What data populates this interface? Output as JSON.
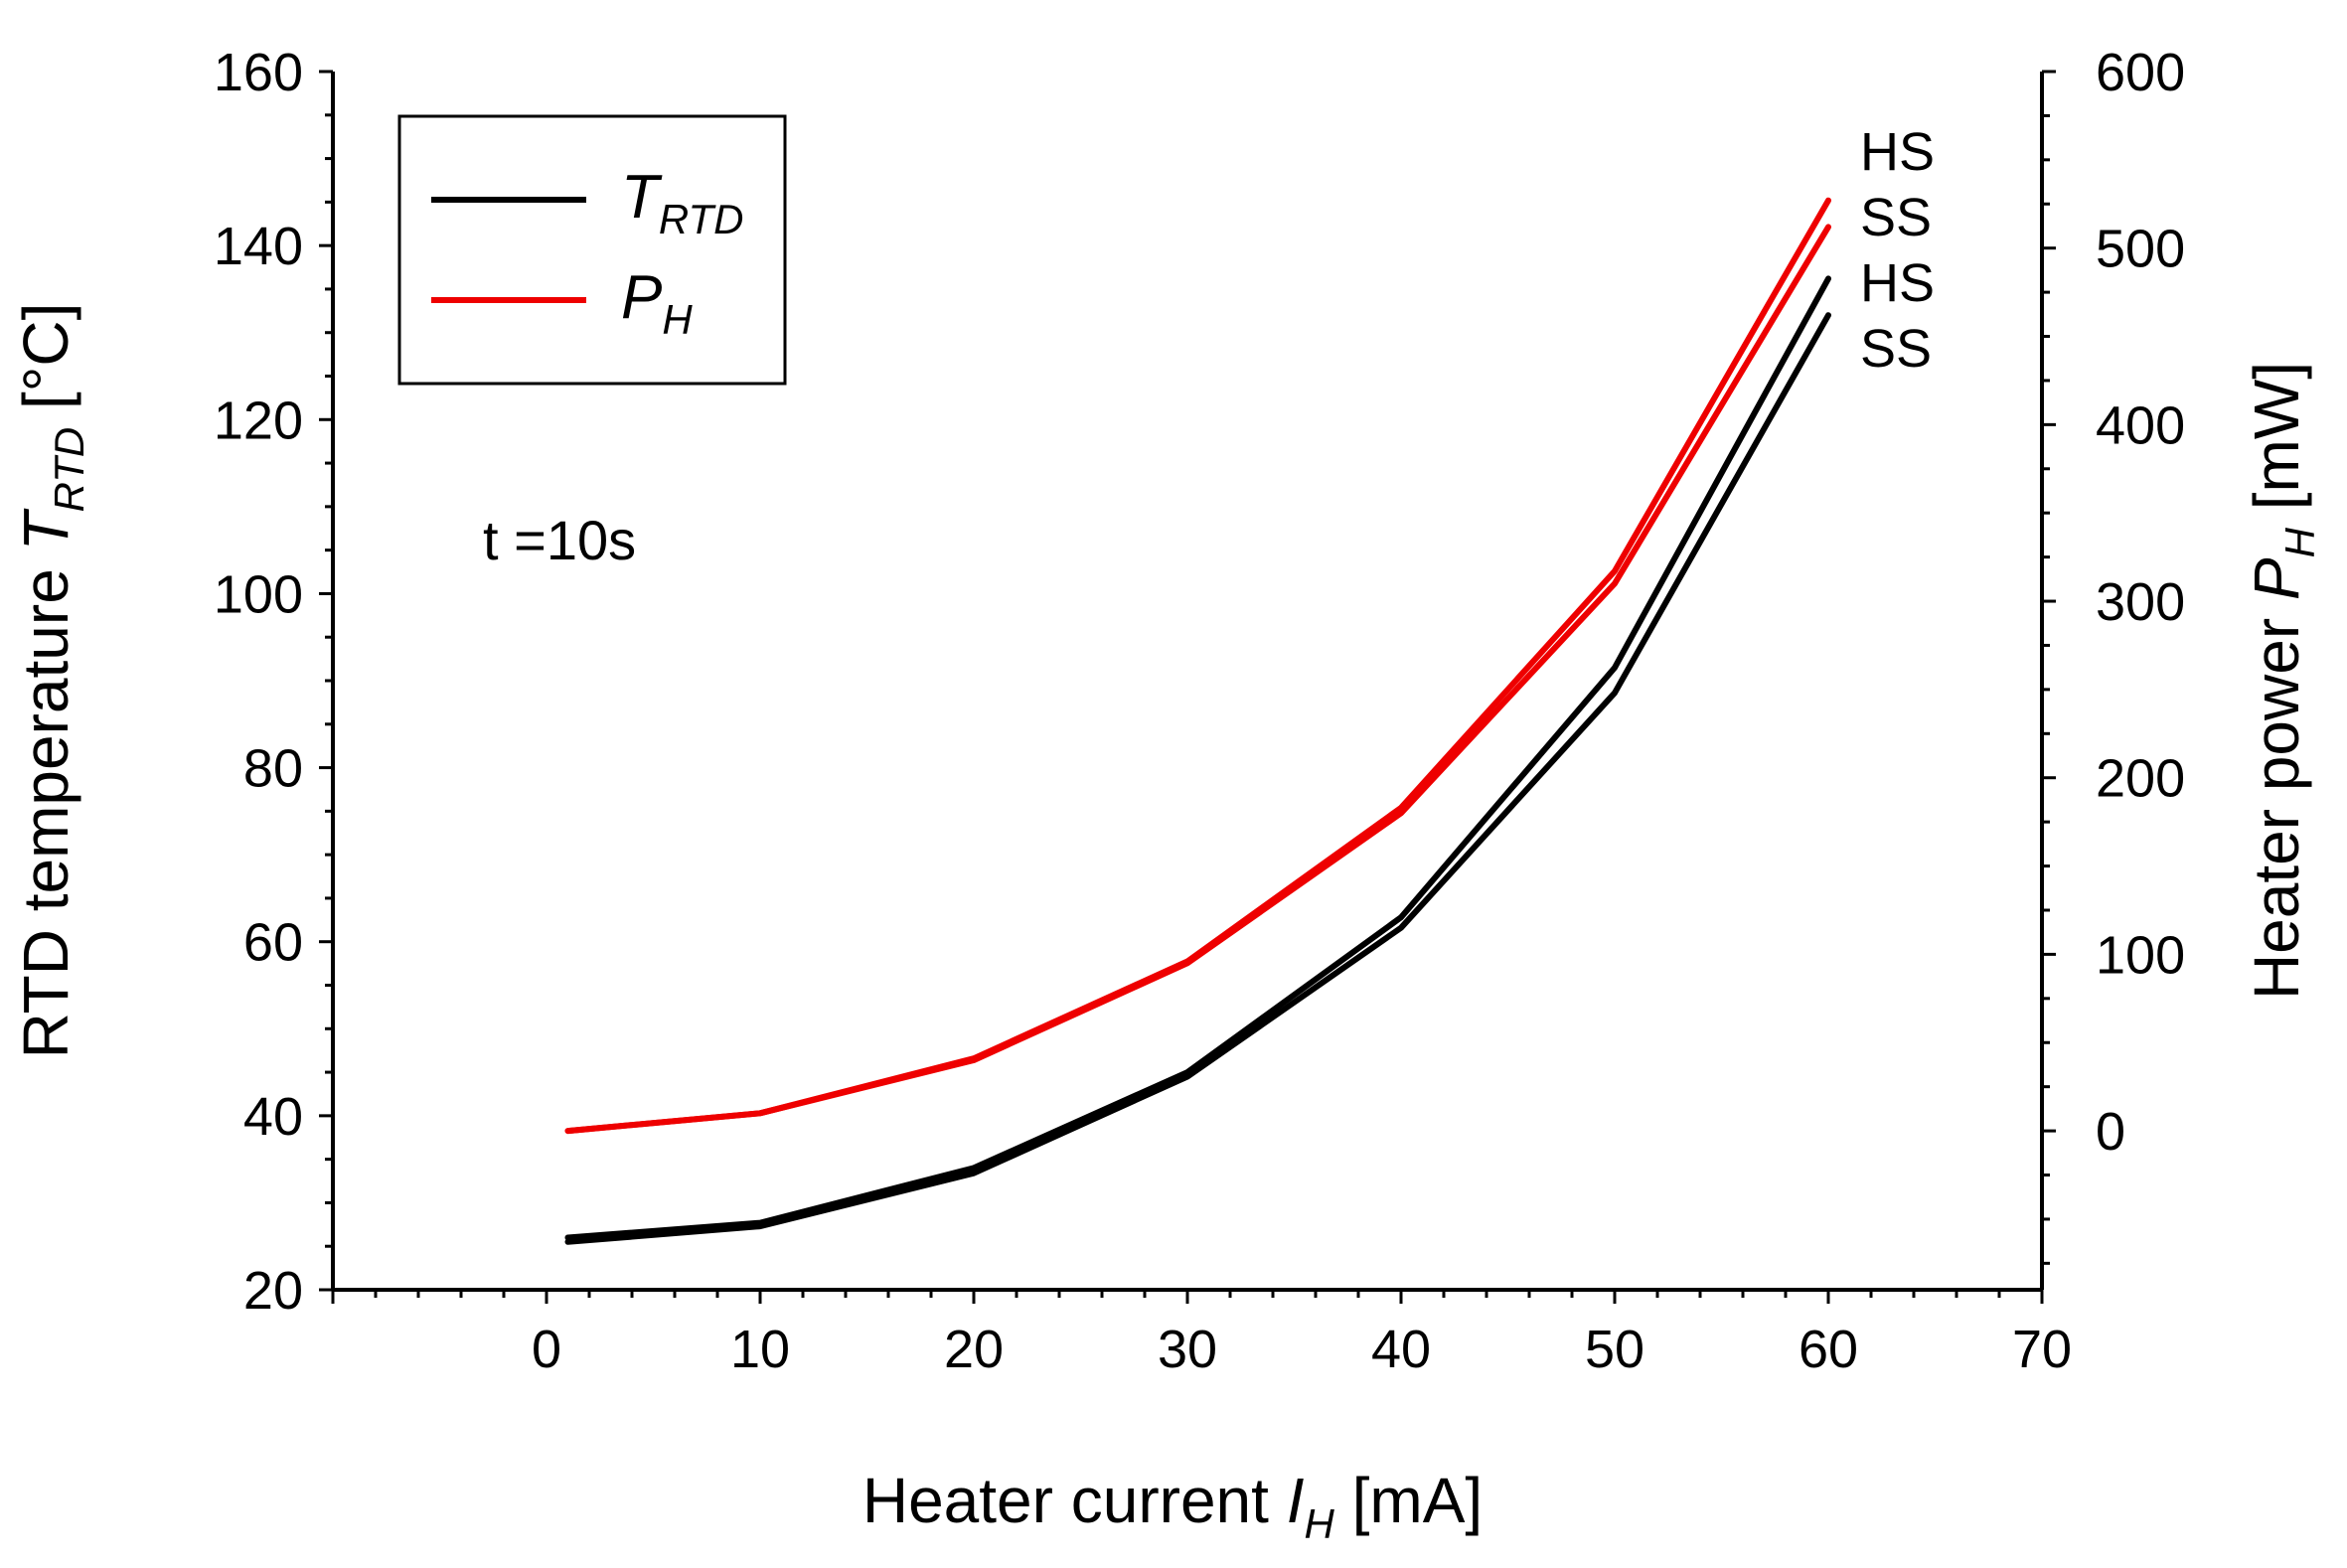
{
  "chart_data": {
    "type": "line",
    "title": "",
    "xlabel": {
      "main": "Heater current ",
      "italic": "I",
      "sub": "H",
      "unit": " [mA]"
    },
    "ylabel_left": {
      "main": "RTD temperature ",
      "italic": "T",
      "sub": "RTD",
      "unit": " [°C]"
    },
    "ylabel_right": {
      "main": "Heater power ",
      "italic": "P",
      "sub": "H",
      "unit": " [mW]"
    },
    "xlim": [
      -10,
      70
    ],
    "ylim_left": [
      20,
      160
    ],
    "ylim_right": [
      -90,
      600
    ],
    "x_ticks": [
      "0",
      "10",
      "20",
      "30",
      "40",
      "50",
      "60",
      "70"
    ],
    "y_left_ticks": [
      "20",
      "40",
      "60",
      "80",
      "100",
      "120",
      "140",
      "160"
    ],
    "y_right_ticks": [
      "0",
      "100",
      "200",
      "300",
      "400",
      "500",
      "600"
    ],
    "grid": false,
    "legend": {
      "position": "top-left",
      "entries": [
        {
          "italic": "T",
          "sub": "RTD",
          "color": "#000000"
        },
        {
          "italic": "P",
          "sub": "H",
          "color": "#ee0000"
        }
      ]
    },
    "annotation": "t =10s",
    "series": [
      {
        "name": "T_RTD HS",
        "axis": "left",
        "color": "#000000",
        "tag": "HS",
        "x": [
          1,
          10,
          20,
          30,
          40,
          50,
          60
        ],
        "values": [
          26,
          27.7,
          34,
          45,
          62.8,
          91.5,
          136.2
        ]
      },
      {
        "name": "T_RTD SS",
        "axis": "left",
        "color": "#000000",
        "tag": "SS",
        "x": [
          1,
          10,
          20,
          30,
          40,
          50,
          60
        ],
        "values": [
          25.5,
          27.3,
          33.4,
          44.5,
          61.6,
          88.6,
          132
        ]
      },
      {
        "name": "P_H HS",
        "axis": "right",
        "color": "#ee0000",
        "tag": "HS",
        "x": [
          1,
          10,
          20,
          30,
          40,
          50,
          60
        ],
        "values": [
          0,
          10,
          41,
          96,
          183,
          317,
          527
        ]
      },
      {
        "name": "P_H SS",
        "axis": "right",
        "color": "#ee0000",
        "tag": "SS",
        "x": [
          1,
          10,
          20,
          30,
          40,
          50,
          60
        ],
        "values": [
          0,
          10,
          40,
          95,
          180,
          310,
          512
        ]
      }
    ],
    "series_tags_order": [
      "HS",
      "SS",
      "HS",
      "SS"
    ]
  }
}
